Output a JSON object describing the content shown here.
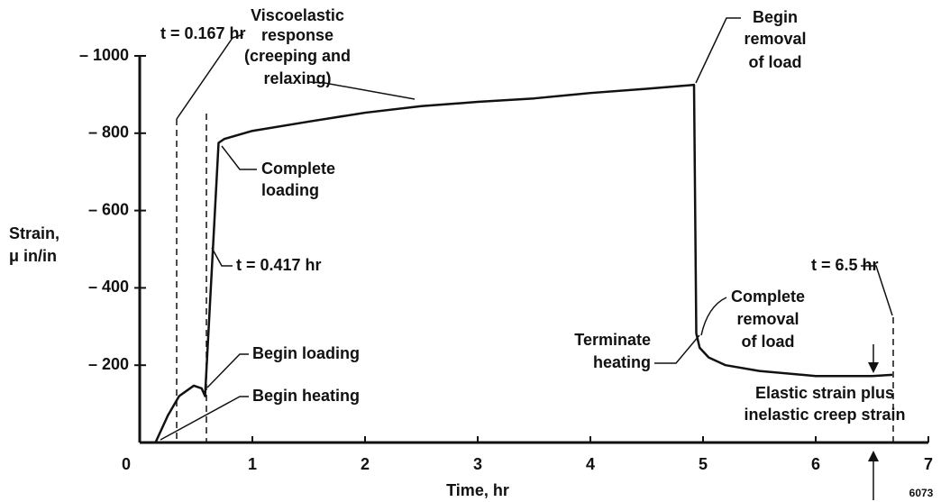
{
  "chart_data": {
    "type": "line",
    "x_label": "Time, hr",
    "y_label": [
      "Strain,",
      "μ in/in"
    ],
    "xlim": [
      0,
      7
    ],
    "ylim": [
      0,
      -1000
    ],
    "xticks": [
      0,
      1,
      2,
      3,
      4,
      5,
      6,
      7
    ],
    "yticks": [
      {
        "value": -200,
        "label": "– 200"
      },
      {
        "value": -400,
        "label": "– 400"
      },
      {
        "value": -600,
        "label": "– 600"
      },
      {
        "value": -800,
        "label": "– 800"
      },
      {
        "value": -1000,
        "label": "– 1000"
      }
    ],
    "series": [
      {
        "color": "#111111",
        "x": [
          0.14,
          0.25,
          0.35,
          0.48,
          0.55,
          0.58,
          0.7,
          0.75,
          1,
          1.5,
          2,
          2.5,
          3,
          3.5,
          4,
          4.5,
          4.92,
          4.94,
          4.97,
          5.05,
          5.2,
          5.5,
          6,
          6.5,
          6.68
        ],
        "values": [
          0,
          -70,
          -120,
          -147,
          -140,
          -120,
          -775,
          -785,
          -806,
          -830,
          -853,
          -870,
          -881,
          -890,
          -904,
          -915,
          -925,
          -282,
          -245,
          -220,
          -200,
          -185,
          -172,
          -172,
          -175
        ]
      }
    ],
    "annotations": [
      [
        "t = 0.167 hr"
      ],
      [
        "Viscoelastic",
        "response",
        "(creeping and",
        "relaxing)"
      ],
      [
        "Begin",
        "removal",
        "of load"
      ],
      [
        "Complete",
        "loading"
      ],
      [
        "t = 0.417 hr"
      ],
      [
        "Begin loading"
      ],
      [
        "Begin heating"
      ],
      [
        "Terminate",
        "heating"
      ],
      [
        "Complete",
        "removal",
        "of load"
      ],
      [
        "t = 6.5 hr"
      ],
      [
        "Elastic strain plus",
        "inelastic creep strain"
      ]
    ],
    "figure_number": "6073"
  }
}
